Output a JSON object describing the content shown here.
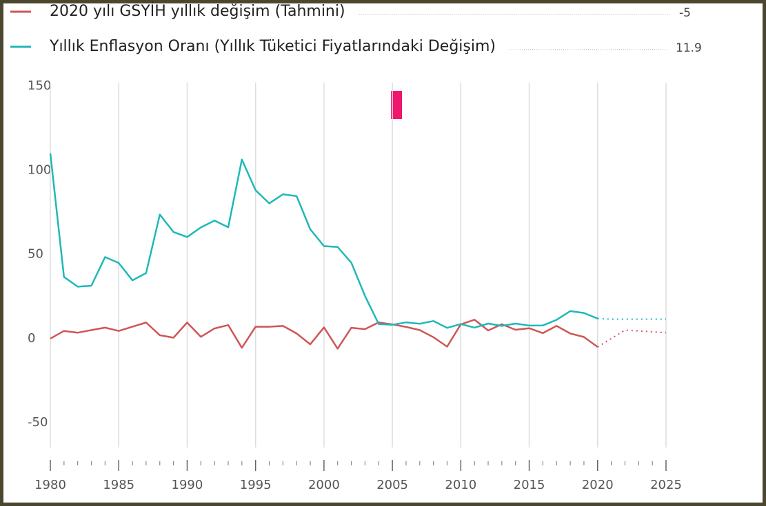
{
  "chart_data": {
    "type": "line",
    "x": [
      1980,
      1981,
      1982,
      1983,
      1984,
      1985,
      1986,
      1987,
      1988,
      1989,
      1990,
      1991,
      1992,
      1993,
      1994,
      1995,
      1996,
      1997,
      1998,
      1999,
      2000,
      2001,
      2002,
      2003,
      2004,
      2005,
      2006,
      2007,
      2008,
      2009,
      2010,
      2011,
      2012,
      2013,
      2014,
      2015,
      2016,
      2017,
      2018,
      2019,
      2020,
      2021,
      2022,
      2023,
      2024,
      2025
    ],
    "dashed_from": 2020,
    "series": [
      {
        "name": "2020 yılı GSYİH yıllık değişim (Tahmini)",
        "color": "#cf5656",
        "latest": -5,
        "values": [
          0,
          4.5,
          3.5,
          5,
          6.5,
          4.5,
          7,
          9.5,
          2,
          0.5,
          9.5,
          1,
          6,
          8,
          -5.5,
          7,
          7,
          7.5,
          3,
          -3.4,
          6.6,
          -6,
          6.4,
          5.6,
          9.6,
          8.4,
          6.9,
          5,
          0.8,
          -4.8,
          8.4,
          11.2,
          4.8,
          8.5,
          5.2,
          6.1,
          3.2,
          7.5,
          3,
          0.9,
          -5,
          0,
          5,
          4.5,
          4,
          3.5
        ]
      },
      {
        "name": "Yıllık Enflasyon Oranı (Yıllık Tüketici Fiyatlarındaki Değişim)",
        "color": "#1fb8b8",
        "latest": 11.9,
        "values": [
          110,
          36.6,
          30.8,
          31.4,
          48.4,
          44.9,
          34.6,
          38.9,
          73.7,
          63.3,
          60.3,
          66,
          70.1,
          66.1,
          106.3,
          88.1,
          80.3,
          85.7,
          84.6,
          64.9,
          54.9,
          54.4,
          45,
          25.3,
          8.6,
          8.2,
          9.6,
          8.8,
          10.4,
          6.3,
          8.6,
          6.5,
          8.9,
          7.5,
          8.9,
          7.7,
          7.8,
          11.1,
          16.3,
          15.2,
          11.9,
          11.5,
          11.5,
          11.5,
          11.5,
          11.5
        ]
      }
    ],
    "xlim": [
      1980,
      2025
    ],
    "xticks": [
      1980,
      1985,
      1990,
      1995,
      2000,
      2005,
      2010,
      2015,
      2020,
      2025
    ],
    "xticks_minor": [
      1981,
      1982,
      1983,
      1984,
      1986,
      1987,
      1988,
      1989,
      1991,
      1992,
      1993,
      1994,
      1996,
      1997,
      1998,
      1999,
      2001,
      2002,
      2003,
      2004,
      2006,
      2007,
      2008,
      2009,
      2011,
      2012,
      2013,
      2014,
      2016,
      2017,
      2018,
      2019,
      2021,
      2022,
      2023,
      2024
    ],
    "ylim": [
      -50,
      150
    ],
    "yticks": [
      -50,
      0,
      50,
      100,
      150
    ],
    "grid": true
  }
}
